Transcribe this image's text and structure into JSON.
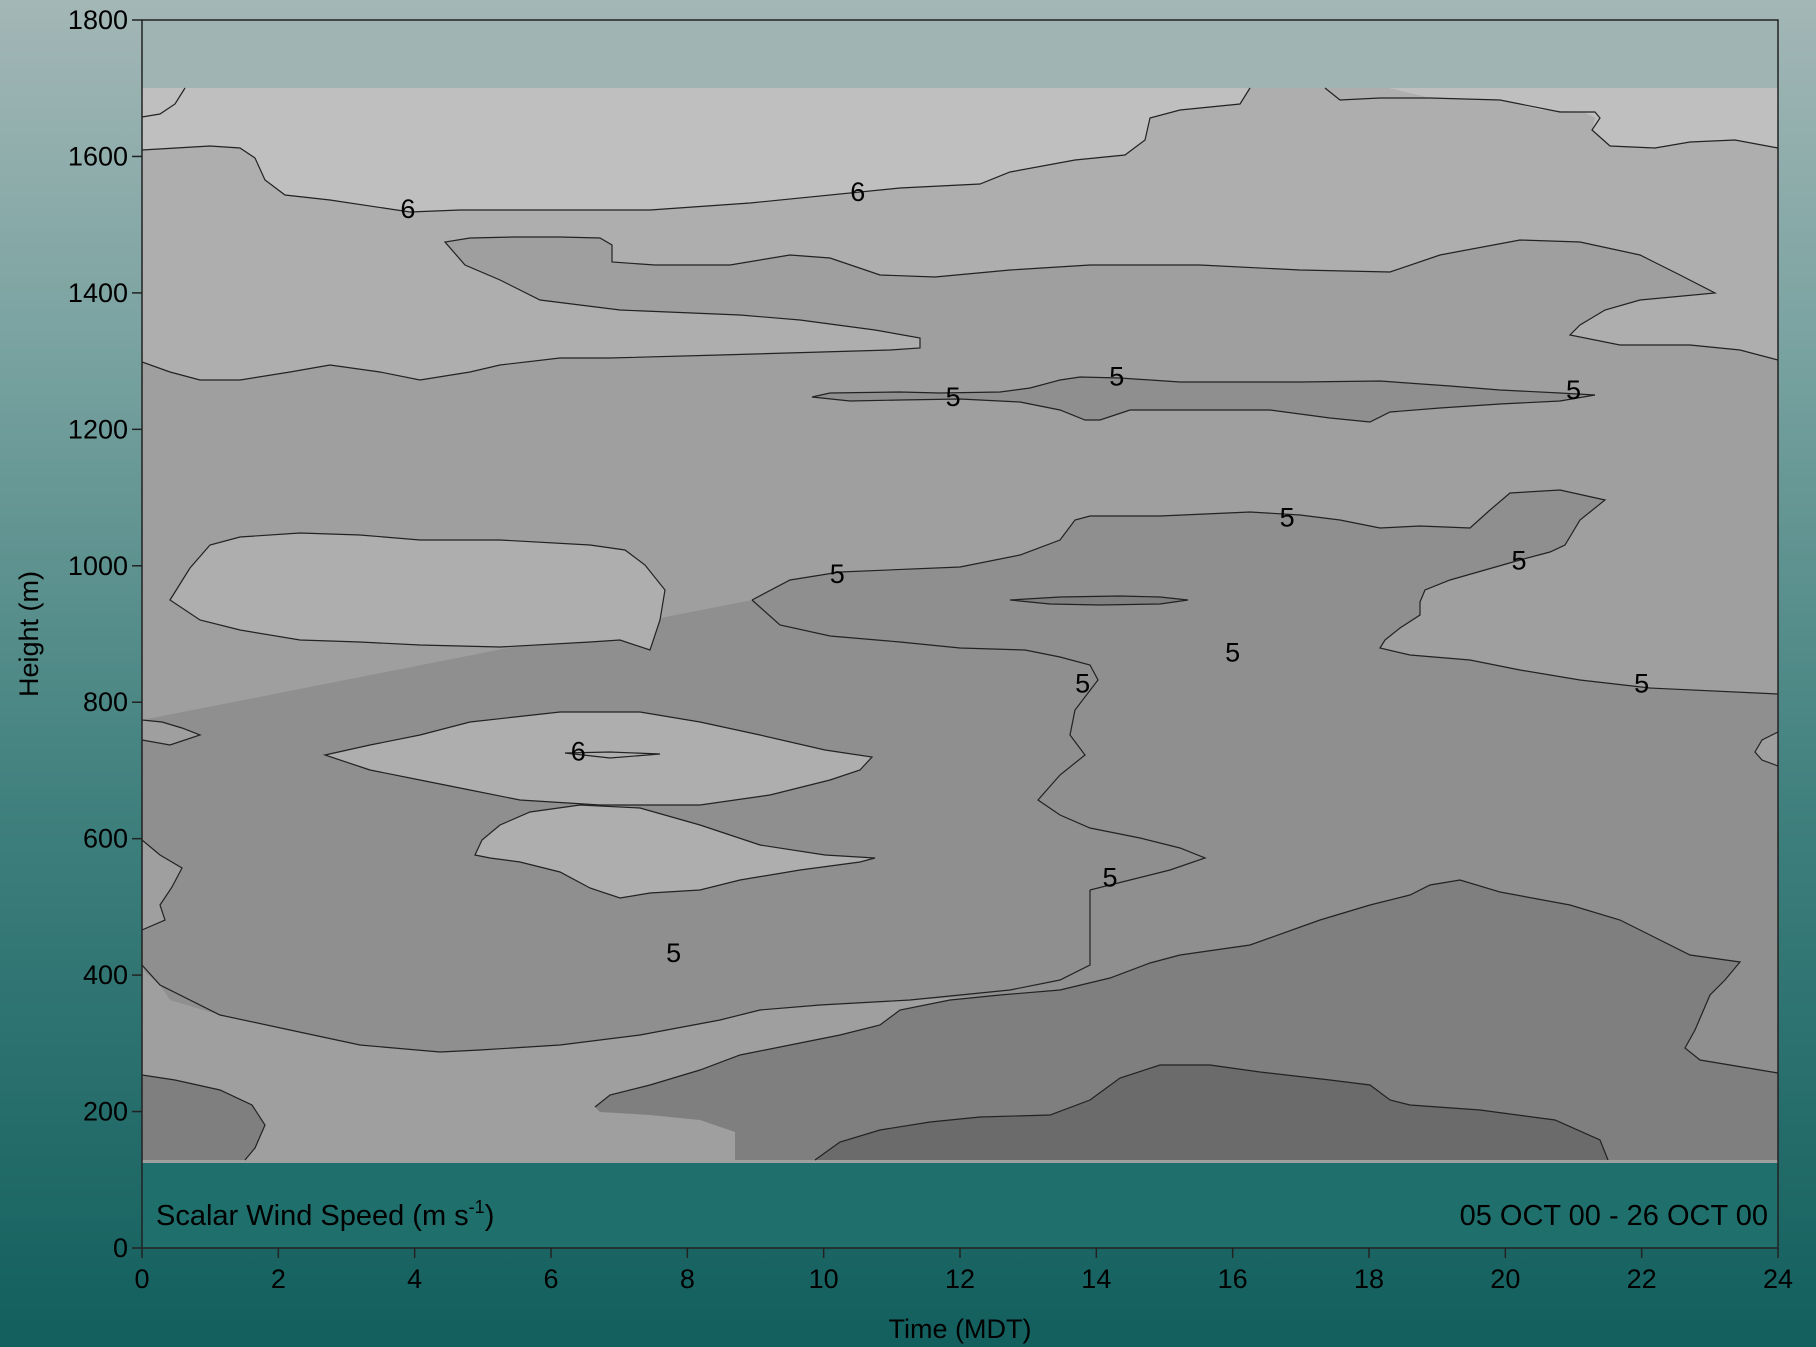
{
  "chart_data": {
    "type": "contour",
    "xlabel": "Time (MDT)",
    "ylabel": "Height (m)",
    "xlim": [
      0,
      24
    ],
    "ylim": [
      0,
      1800
    ],
    "xticks": [
      0,
      2,
      4,
      6,
      8,
      10,
      12,
      14,
      16,
      18,
      20,
      22,
      24
    ],
    "yticks": [
      0,
      200,
      400,
      600,
      800,
      1000,
      1200,
      1400,
      1600,
      1800
    ],
    "data_range_y": [
      125,
      1700
    ],
    "variable_label": "Scalar Wind Speed (m s",
    "variable_unit_exponent": "-1",
    "variable_label_close": ")",
    "date_range": "05 OCT 00 - 26 OCT 00",
    "colors": {
      "outside_data": "#1f6f6c",
      "top_outside_data": "#9fb4b3",
      "levels": [
        "#6b6b6b",
        "#7f7f7f",
        "#8f8f8f",
        "#9f9f9f",
        "#aeaeae",
        "#bfbfbf"
      ]
    },
    "contour_labels": [
      {
        "text": "6",
        "x": 3.9,
        "y": 1520
      },
      {
        "text": "6",
        "x": 10.5,
        "y": 1545
      },
      {
        "text": "5",
        "x": 11.9,
        "y": 1245
      },
      {
        "text": "5",
        "x": 14.3,
        "y": 1275
      },
      {
        "text": "5",
        "x": 21.0,
        "y": 1255
      },
      {
        "text": "5",
        "x": 16.8,
        "y": 1068
      },
      {
        "text": "5",
        "x": 10.2,
        "y": 985
      },
      {
        "text": "5",
        "x": 20.2,
        "y": 1005
      },
      {
        "text": "5",
        "x": 16.0,
        "y": 870
      },
      {
        "text": "5",
        "x": 13.8,
        "y": 825
      },
      {
        "text": "5",
        "x": 22.0,
        "y": 825
      },
      {
        "text": "6",
        "x": 6.4,
        "y": 725
      },
      {
        "text": "5",
        "x": 14.2,
        "y": 540
      },
      {
        "text": "5",
        "x": 7.8,
        "y": 430
      }
    ]
  }
}
